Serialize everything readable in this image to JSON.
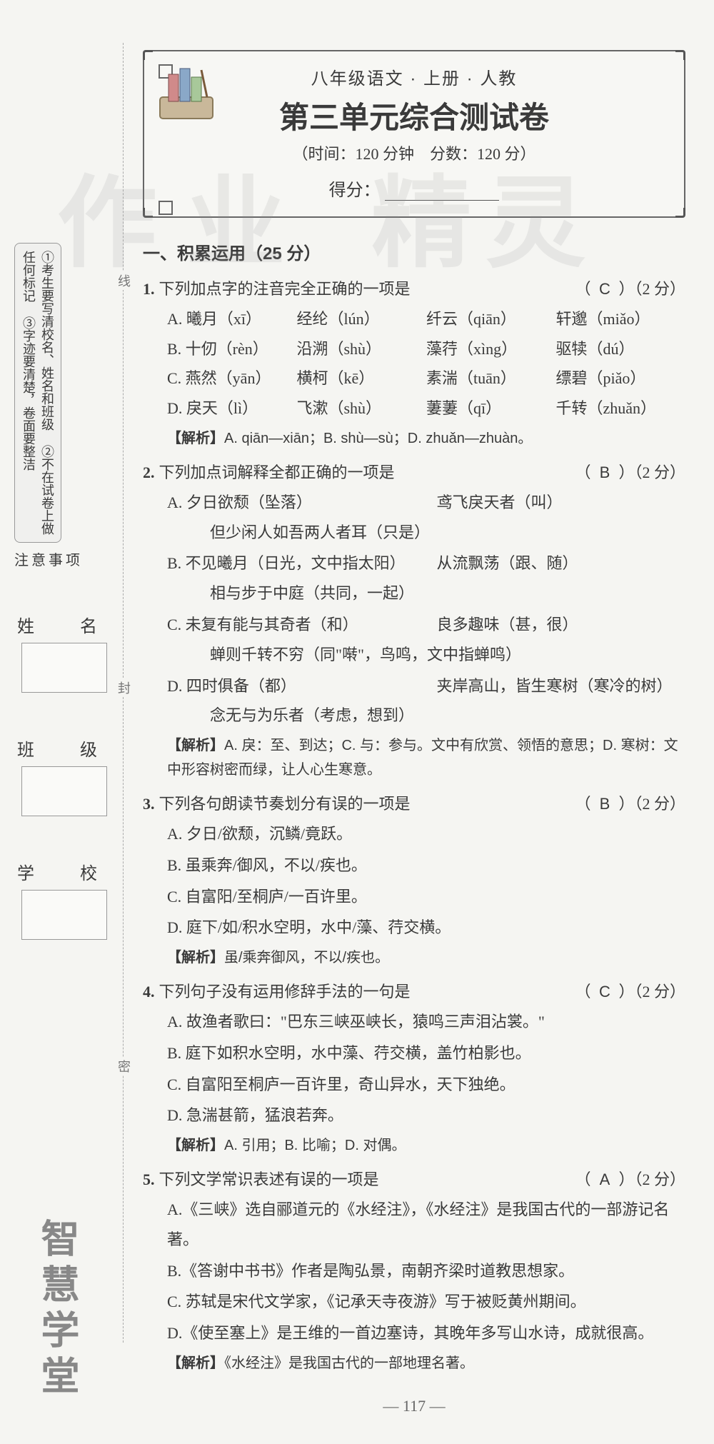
{
  "watermark_left": "作业",
  "watermark_right": "精灵",
  "left": {
    "notes_title": "注意事项",
    "notes_items": [
      "①考生要写清校名、姓名和班级",
      "②不在试卷上做任何标记",
      "③字迹要清楚，卷面要整洁"
    ],
    "dash_labels": {
      "top": "线",
      "mid": "封",
      "bot": "密"
    },
    "fields": {
      "name": "姓　名",
      "class": "班　级",
      "school": "学　校"
    },
    "brand": "智慧学堂"
  },
  "header": {
    "subject": "八年级语文 · 上册 · 人教",
    "title": "第三单元综合测试卷",
    "time_score": "（时间：120 分钟　分数：120 分）",
    "score_label": "得分："
  },
  "section1": "一、积累运用（25 分）",
  "questions": [
    {
      "num": "1.",
      "stem": "下列加点字的注音完全正确的一项是",
      "answer": "C",
      "points": "（2 分）",
      "type": "pinyin-grid",
      "rows": [
        [
          "A. 曦月（xī）",
          "经纶（lún）",
          "纤云（qiān）",
          "轩邈（miǎo）"
        ],
        [
          "B. 十仞（rèn）",
          "沿溯（shù）",
          "藻荇（xìng）",
          "驱犊（dú）"
        ],
        [
          "C. 燕然（yān）",
          "横柯（kē）",
          "素湍（tuān）",
          "缥碧（piǎo）"
        ],
        [
          "D. 戾天（lì）",
          "飞漱（shù）",
          "萋萋（qī）",
          "千转（zhuǎn）"
        ]
      ],
      "analysis": "A. qiān—xiān；B. shù—sù；D. zhuǎn—zhuàn。"
    },
    {
      "num": "2.",
      "stem": "下列加点词解释全都正确的一项是",
      "answer": "B",
      "points": "（2 分）",
      "type": "explain",
      "rows": [
        {
          "opt": "A.",
          "left": "夕日欲颓（坠落）",
          "right": "鸢飞戾天者（叫）",
          "cont": "但少闲人如吾两人者耳（只是）"
        },
        {
          "opt": "B.",
          "left": "不见曦月（日光，文中指太阳）",
          "right": "从流飘荡（跟、随）",
          "cont": "相与步于中庭（共同，一起）"
        },
        {
          "opt": "C.",
          "left": "未复有能与其奇者（和）",
          "right": "良多趣味（甚，很）",
          "cont": "蝉则千转不穷（同\"啭\"，鸟鸣，文中指蝉鸣）"
        },
        {
          "opt": "D.",
          "left": "四时俱备（都）",
          "right": "夹岸高山，皆生寒树（寒冷的树）",
          "cont": "念无与为乐者（考虑，想到）"
        }
      ],
      "analysis": "A. 戾：至、到达；C. 与：参与。文中有欣赏、领悟的意思；D. 寒树：文中形容树密而绿，让人心生寒意。"
    },
    {
      "num": "3.",
      "stem": "下列各句朗读节奏划分有误的一项是",
      "answer": "B",
      "points": "（2 分）",
      "type": "list",
      "rows": [
        "A. 夕日/欲颓，沉鳞/竟跃。",
        "B. 虽乘奔/御风，不以/疾也。",
        "C. 自富阳/至桐庐/一百许里。",
        "D. 庭下/如/积水空明，水中/藻、荇交横。"
      ],
      "analysis": "虽/乘奔御风，不以/疾也。"
    },
    {
      "num": "4.",
      "stem": "下列句子没有运用修辞手法的一句是",
      "answer": "C",
      "points": "（2 分）",
      "type": "list",
      "rows": [
        "A. 故渔者歌曰：\"巴东三峡巫峡长，猿鸣三声泪沾裳。\"",
        "B. 庭下如积水空明，水中藻、荇交横，盖竹柏影也。",
        "C. 自富阳至桐庐一百许里，奇山异水，天下独绝。",
        "D. 急湍甚箭，猛浪若奔。"
      ],
      "analysis": "A. 引用；B. 比喻；D. 对偶。"
    },
    {
      "num": "5.",
      "stem": "下列文学常识表述有误的一项是",
      "answer": "A",
      "points": "（2 分）",
      "type": "list",
      "rows": [
        "A.《三峡》选自郦道元的《水经注》，《水经注》是我国古代的一部游记名著。",
        "B.《答谢中书书》作者是陶弘景，南朝齐梁时道教思想家。",
        "C. 苏轼是宋代文学家，《记承天寺夜游》写于被贬黄州期间。",
        "D.《使至塞上》是王维的一首边塞诗，其晚年多写山水诗，成就很高。"
      ],
      "analysis": "《水经注》是我国古代的一部地理名著。"
    }
  ],
  "page_number": "— 117 —",
  "colors": {
    "text": "#3a3a3a",
    "bg": "#f5f5f2",
    "border": "#666666",
    "watermark": "rgba(150,150,150,0.15)",
    "faint": "#888888"
  }
}
